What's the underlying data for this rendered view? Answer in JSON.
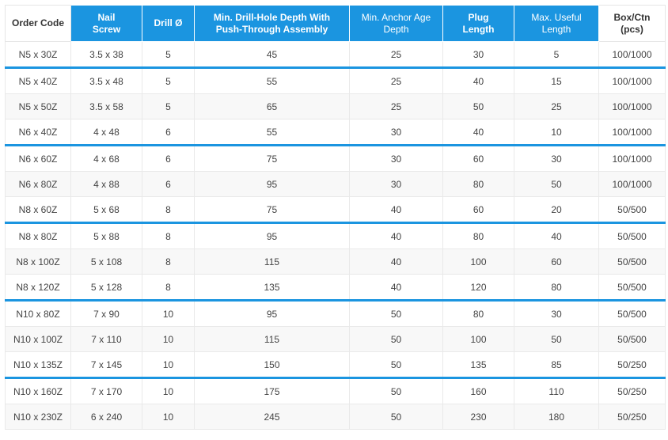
{
  "table": {
    "headers": [
      [
        "Order Code"
      ],
      [
        "Nail",
        "Screw"
      ],
      [
        "Drill Ø"
      ],
      [
        "Min. Drill-Hole Depth With",
        "Push-Through Assembly"
      ],
      [
        "Min. Anchor Age",
        "Depth"
      ],
      [
        "Plug",
        "Length"
      ],
      [
        "Max. Useful",
        "Length"
      ],
      [
        "Box/Ctn",
        "(pcs)"
      ]
    ],
    "rows": [
      [
        "N5 x 30Z",
        "3.5 x 38",
        "5",
        "45",
        "25",
        "30",
        "5",
        "100/1000"
      ],
      [
        "N5 x 40Z",
        "3.5 x 48",
        "5",
        "55",
        "25",
        "40",
        "15",
        "100/1000"
      ],
      [
        "N5 x 50Z",
        "3.5 x 58",
        "5",
        "65",
        "25",
        "50",
        "25",
        "100/1000"
      ],
      [
        "N6 x 40Z",
        "4 x 48",
        "6",
        "55",
        "30",
        "40",
        "10",
        "100/1000"
      ],
      [
        "N6 x 60Z",
        "4 x 68",
        "6",
        "75",
        "30",
        "60",
        "30",
        "100/1000"
      ],
      [
        "N6 x 80Z",
        "4 x 88",
        "6",
        "95",
        "30",
        "80",
        "50",
        "100/1000"
      ],
      [
        "N8 x 60Z",
        "5 x 68",
        "8",
        "75",
        "40",
        "60",
        "20",
        "50/500"
      ],
      [
        "N8 x 80Z",
        "5 x 88",
        "8",
        "95",
        "40",
        "80",
        "40",
        "50/500"
      ],
      [
        "N8 x 100Z",
        "5 x 108",
        "8",
        "115",
        "40",
        "100",
        "60",
        "50/500"
      ],
      [
        "N8 x 120Z",
        "5 x 128",
        "8",
        "135",
        "40",
        "120",
        "80",
        "50/500"
      ],
      [
        "N10 x 80Z",
        "7 x 90",
        "10",
        "95",
        "50",
        "80",
        "30",
        "50/500"
      ],
      [
        "N10 x 100Z",
        "7 x 110",
        "10",
        "115",
        "50",
        "100",
        "50",
        "50/500"
      ],
      [
        "N10 x 135Z",
        "7 x 145",
        "10",
        "150",
        "50",
        "135",
        "85",
        "50/250"
      ],
      [
        "N10 x 160Z",
        "7 x 170",
        "10",
        "175",
        "50",
        "160",
        "110",
        "50/250"
      ],
      [
        "N10 x 230Z",
        "6 x 240",
        "10",
        "245",
        "50",
        "230",
        "180",
        "50/250"
      ]
    ],
    "colors": {
      "header_blue": "#1b95e0",
      "separator_blue": "#1b95e0",
      "text": "#444444",
      "stripe": "#f8f8f8",
      "grid": "#e9e9e9"
    }
  }
}
